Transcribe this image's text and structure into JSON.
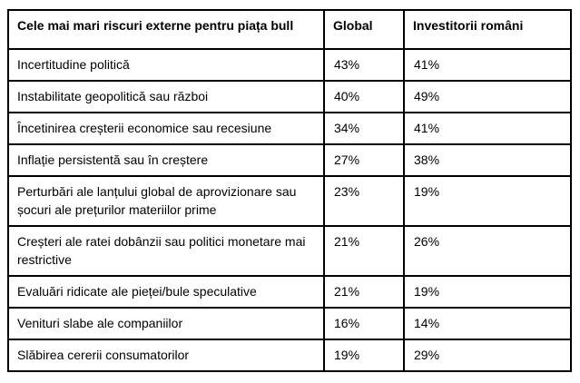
{
  "colors": {
    "background": "#ffffff",
    "border": "#000000",
    "text": "#000000"
  },
  "table": {
    "columns": [
      "Cele mai mari riscuri externe pentru piața bull",
      "Global",
      "Investitorii români"
    ],
    "rows": [
      {
        "risk": "Incertitudine politică",
        "global": "43%",
        "romanian": "41%"
      },
      {
        "risk": "Instabilitate geopolitică sau război",
        "global": "40%",
        "romanian": "49%"
      },
      {
        "risk": "Încetinirea creșterii economice sau recesiune",
        "global": "34%",
        "romanian": "41%"
      },
      {
        "risk": "Inflație persistentă sau în creștere",
        "global": "27%",
        "romanian": "38%"
      },
      {
        "risk": "Perturbări ale lanțului global de aprovizionare sau șocuri ale prețurilor materiilor prime",
        "global": "23%",
        "romanian": "19%"
      },
      {
        "risk": "Creșteri ale ratei dobânzii sau politici monetare mai restrictive",
        "global": "21%",
        "romanian": "26%"
      },
      {
        "risk": "Evaluări ridicate ale pieței/bule speculative",
        "global": "21%",
        "romanian": "19%"
      },
      {
        "risk": "Venituri slabe ale companiilor",
        "global": "16%",
        "romanian": "14%"
      },
      {
        "risk": "Slăbirea cererii consumatorilor",
        "global": "19%",
        "romanian": "29%"
      }
    ]
  },
  "chart_data": {
    "type": "table",
    "title": "Cele mai mari riscuri externe pentru piața bull",
    "columns": [
      "Cele mai mari riscuri externe pentru piața bull",
      "Global",
      "Investitorii români"
    ],
    "categories": [
      "Incertitudine politică",
      "Instabilitate geopolitică sau război",
      "Încetinirea creșterii economice sau recesiune",
      "Inflație persistentă sau în creștere",
      "Perturbări ale lanțului global de aprovizionare sau șocuri ale prețurilor materiilor prime",
      "Creșteri ale ratei dobânzii sau politici monetare mai restrictive",
      "Evaluări ridicate ale pieței/bule speculative",
      "Venituri slabe ale companiilor",
      "Slăbirea cererii consumatorilor"
    ],
    "series": [
      {
        "name": "Global",
        "values": [
          43,
          40,
          34,
          27,
          23,
          21,
          21,
          16,
          19
        ]
      },
      {
        "name": "Investitorii români",
        "values": [
          41,
          49,
          41,
          38,
          19,
          26,
          19,
          14,
          29
        ]
      }
    ],
    "unit": "%"
  }
}
